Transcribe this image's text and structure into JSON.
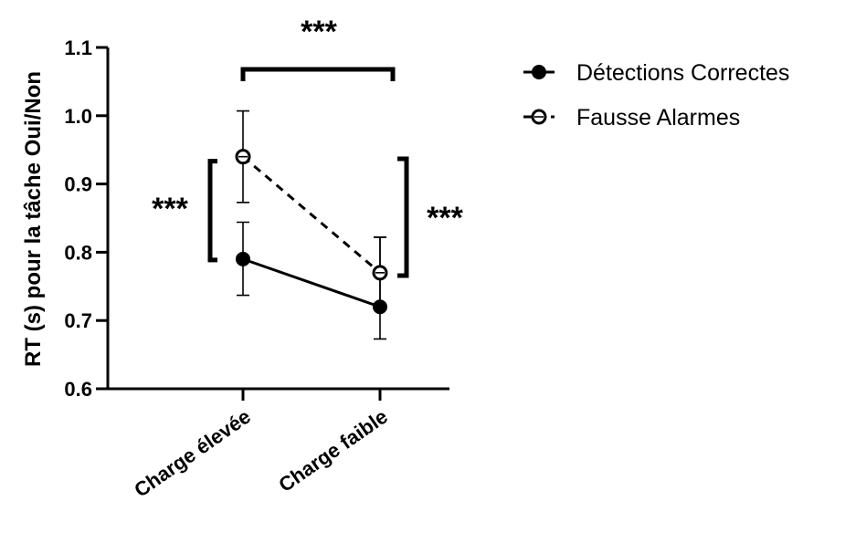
{
  "chart_data": {
    "type": "line",
    "ylabel": "RT (s) pour la tâche Oui/Non",
    "xlabel": "",
    "categories": [
      "Charge élevée",
      "Charge faible"
    ],
    "ylim": [
      0.6,
      1.1
    ],
    "yticks": [
      "0.6",
      "0.7",
      "0.8",
      "0.9",
      "1.0",
      "1.1"
    ],
    "grid": false,
    "legend_position": "top-right",
    "series": [
      {
        "name": "Détections Correctes",
        "style": "solid",
        "marker": "filled-circle",
        "values": [
          0.79,
          0.72
        ],
        "err_low": [
          0.737,
          0.673
        ],
        "err_high": [
          0.844,
          0.822
        ]
      },
      {
        "name": "Fausse Alarmes",
        "style": "dashed",
        "marker": "open-circle",
        "values": [
          0.94,
          0.77
        ],
        "err_low": [
          0.873,
          0.72
        ],
        "err_high": [
          1.007,
          0.822
        ]
      }
    ],
    "annotations": [
      {
        "text": "***",
        "type": "bracket-top",
        "between": [
          "Charge élevée",
          "Charge faible"
        ]
      },
      {
        "text": "***",
        "type": "bracket-left",
        "category": "Charge élevée"
      },
      {
        "text": "***",
        "type": "bracket-right",
        "category": "Charge faible"
      }
    ],
    "colors": {
      "line": "#000000",
      "marker_fill": "#000000",
      "open_marker_fill": "#ffffff"
    }
  }
}
